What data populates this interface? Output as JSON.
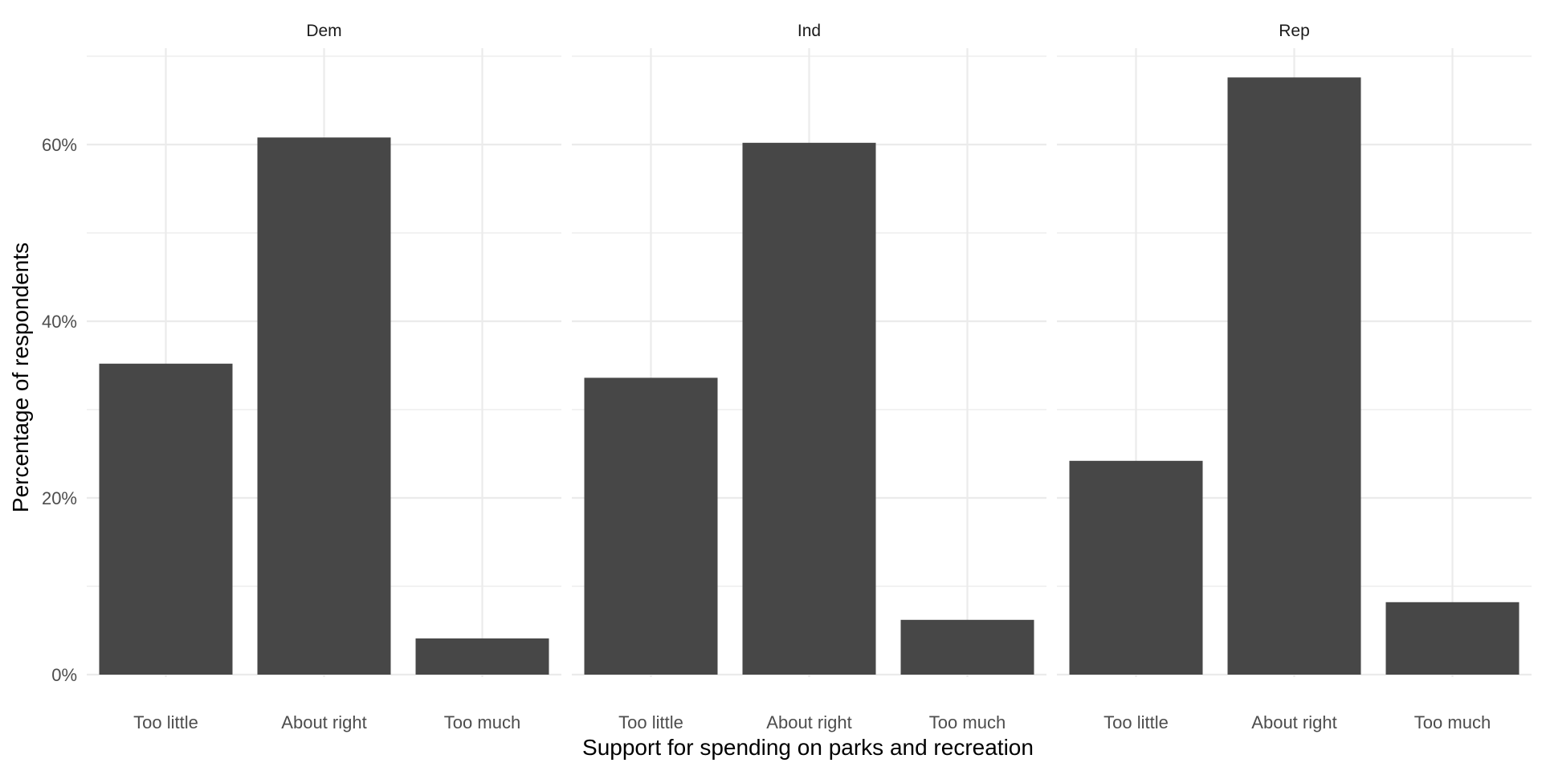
{
  "chart_data": {
    "type": "bar",
    "xlabel": "Support for spending on parks and recreation",
    "ylabel": "Percentage of respondents",
    "categories": [
      "Too little",
      "About right",
      "Too much"
    ],
    "yticks": [
      0,
      20,
      40,
      60
    ],
    "ytick_labels": [
      "0%",
      "20%",
      "40%",
      "60%"
    ],
    "ylim": [
      0,
      71
    ],
    "grid": true,
    "facets": [
      {
        "name": "Dem",
        "values": [
          35.2,
          60.8,
          4.1
        ]
      },
      {
        "name": "Ind",
        "values": [
          33.6,
          60.2,
          6.2
        ]
      },
      {
        "name": "Rep",
        "values": [
          24.2,
          67.6,
          8.2
        ]
      }
    ],
    "bar_color": "#474747",
    "grid_color": "#ebebeb"
  }
}
